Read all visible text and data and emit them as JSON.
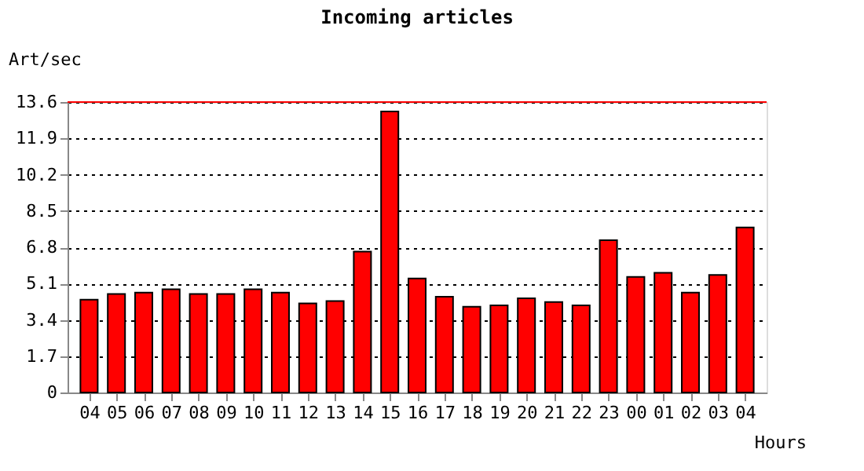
{
  "chart_data": {
    "type": "bar",
    "title": "Incoming articles",
    "xlabel": "Hours",
    "ylabel": "Art/sec",
    "categories": [
      "04",
      "05",
      "06",
      "07",
      "08",
      "09",
      "10",
      "11",
      "12",
      "13",
      "14",
      "15",
      "16",
      "17",
      "18",
      "19",
      "20",
      "21",
      "22",
      "23",
      "00",
      "01",
      "02",
      "03",
      "04"
    ],
    "series": [
      {
        "color": "#ff0000",
        "values": [
          4.35,
          4.61,
          4.68,
          4.83,
          4.61,
          4.61,
          4.83,
          4.68,
          4.17,
          4.28,
          6.6,
          13.16,
          5.34,
          4.48,
          4.02,
          4.08,
          4.41,
          4.24,
          4.08,
          7.13,
          5.41,
          5.61,
          4.68,
          5.5,
          7.73
        ]
      }
    ],
    "ylim": [
      0,
      13.6
    ],
    "yticks": [
      0,
      1.7,
      3.4,
      5.1,
      6.8,
      8.5,
      10.2,
      11.9,
      13.6
    ],
    "grid": "y",
    "ref_lines": [
      {
        "axis": "y",
        "value": 13.6,
        "color": "#ff0000"
      }
    ]
  }
}
